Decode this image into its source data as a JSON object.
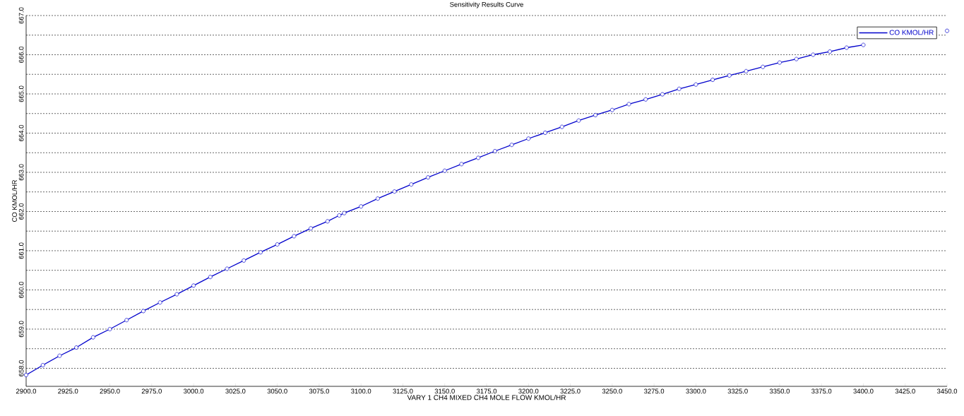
{
  "chart_data": {
    "type": "line",
    "title": "Sensitivity Results Curve",
    "xlabel": "VARY   1 CH4 MIXED CH4 MOLE FLOW KMOL/HR",
    "ylabel": "CO KMOL/HR",
    "x": [
      2900,
      2910,
      2920,
      2930,
      2940,
      2950,
      2960,
      2970,
      2980,
      2990,
      3000,
      3010,
      3020,
      3030,
      3040,
      3050,
      3060,
      3070,
      3080,
      3087,
      3090,
      3100,
      3110,
      3120,
      3130,
      3140,
      3150,
      3160,
      3170,
      3180,
      3190,
      3200,
      3210,
      3220,
      3230,
      3240,
      3250,
      3260,
      3270,
      3280,
      3290,
      3300,
      3310,
      3320,
      3330,
      3340,
      3350,
      3360,
      3370,
      3380,
      3390,
      3400,
      3410,
      3420,
      3430,
      3440,
      3450
    ],
    "series": [
      {
        "name": "CO KMOL/HR",
        "color": "#0000cc",
        "values": [
          657.83,
          658.08,
          658.32,
          658.53,
          658.79,
          659.0,
          659.23,
          659.46,
          659.68,
          659.89,
          660.11,
          660.33,
          660.54,
          660.75,
          660.96,
          661.16,
          661.37,
          661.57,
          661.75,
          661.9,
          661.96,
          662.13,
          662.33,
          662.51,
          662.69,
          662.87,
          663.04,
          663.21,
          663.37,
          663.54,
          663.7,
          663.86,
          664.01,
          664.16,
          664.32,
          664.46,
          664.59,
          664.74,
          664.86,
          664.99,
          665.13,
          665.24,
          665.36,
          665.47,
          665.58,
          665.69,
          665.8,
          665.89,
          666.0,
          666.08,
          666.18,
          666.25,
          null,
          null,
          null,
          null,
          666.61
        ]
      }
    ],
    "xlim": [
      2900,
      3450
    ],
    "ylim": [
      657.54,
      667.0
    ],
    "xticks": [
      {
        "value": 2900,
        "label": "2900.0"
      },
      {
        "value": 2925,
        "label": "2925.0"
      },
      {
        "value": 2950,
        "label": "2950.0"
      },
      {
        "value": 2975,
        "label": "2975.0"
      },
      {
        "value": 3000,
        "label": "3000.0"
      },
      {
        "value": 3025,
        "label": "3025.0"
      },
      {
        "value": 3050,
        "label": "3050.0"
      },
      {
        "value": 3075,
        "label": "3075.0"
      },
      {
        "value": 3100,
        "label": "3100.0"
      },
      {
        "value": 3125,
        "label": "3125.0"
      },
      {
        "value": 3150,
        "label": "3150.0"
      },
      {
        "value": 3175,
        "label": "3175.0"
      },
      {
        "value": 3200,
        "label": "3200.0"
      },
      {
        "value": 3225,
        "label": "3225.0"
      },
      {
        "value": 3250,
        "label": "3250.0"
      },
      {
        "value": 3275,
        "label": "3275.0"
      },
      {
        "value": 3300,
        "label": "3300.0"
      },
      {
        "value": 3325,
        "label": "3325.0"
      },
      {
        "value": 3350,
        "label": "3350.0"
      },
      {
        "value": 3375,
        "label": "3375.0"
      },
      {
        "value": 3400,
        "label": "3400.0"
      },
      {
        "value": 3425,
        "label": "3425.0"
      },
      {
        "value": 3450,
        "label": "3450.0"
      }
    ],
    "yticks": [
      {
        "value": 658,
        "label": "658.0"
      },
      {
        "value": 658.5,
        "label": null
      },
      {
        "value": 659,
        "label": "659.0"
      },
      {
        "value": 659.5,
        "label": null
      },
      {
        "value": 660,
        "label": "660.0"
      },
      {
        "value": 660.5,
        "label": null
      },
      {
        "value": 661,
        "label": "661.0"
      },
      {
        "value": 661.5,
        "label": null
      },
      {
        "value": 662,
        "label": "662.0"
      },
      {
        "value": 662.5,
        "label": null
      },
      {
        "value": 663,
        "label": "663.0"
      },
      {
        "value": 663.5,
        "label": null
      },
      {
        "value": 664,
        "label": "664.0"
      },
      {
        "value": 664.5,
        "label": null
      },
      {
        "value": 665,
        "label": "665.0"
      },
      {
        "value": 665.5,
        "label": null
      },
      {
        "value": 666,
        "label": "666.0"
      },
      {
        "value": 666.5,
        "label": null
      },
      {
        "value": 667,
        "label": "667.0"
      }
    ],
    "grid": "y",
    "legend": "top right",
    "marker": "circle",
    "line_style": "solid"
  }
}
